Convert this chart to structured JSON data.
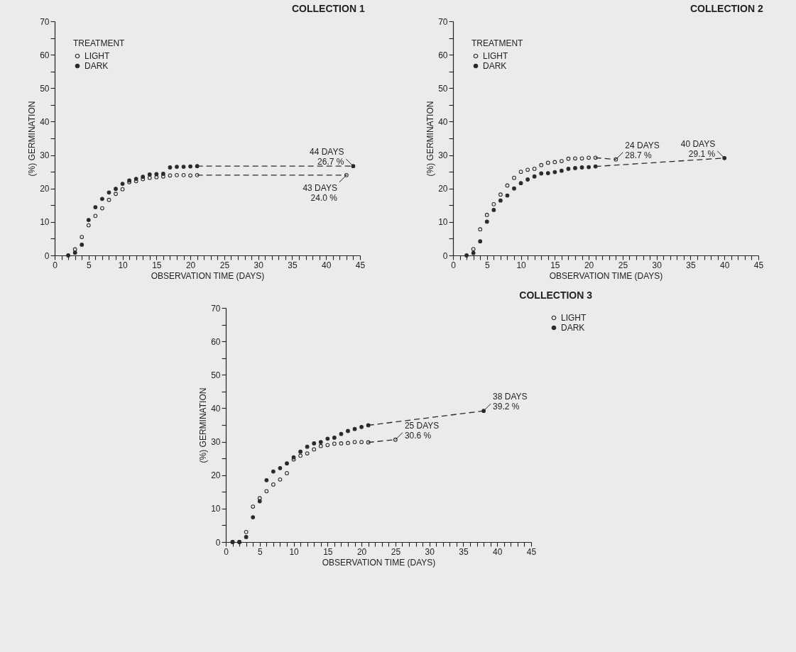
{
  "chart_data": [
    {
      "type": "scatter",
      "title": "COLLECTION   1",
      "xlabel": "OBSERVATION TIME (DAYS)",
      "ylabel": "(%) GERMINATION",
      "legend_title": "TREATMENT",
      "legend": "top left",
      "marker": "circle",
      "xlim": [
        0,
        45
      ],
      "ylim": [
        0,
        70
      ],
      "xticks": [
        0,
        {
          "value": 1,
          "label": null
        },
        {
          "value": 2,
          "label": null
        },
        {
          "value": 3,
          "label": null
        },
        {
          "value": 4,
          "label": null
        },
        5,
        {
          "value": 6,
          "label": null
        },
        {
          "value": 7,
          "label": null
        },
        {
          "value": 8,
          "label": null
        },
        {
          "value": 9,
          "label": null
        },
        10,
        {
          "value": 11,
          "label": null
        },
        {
          "value": 12,
          "label": null
        },
        {
          "value": 13,
          "label": null
        },
        {
          "value": 14,
          "label": null
        },
        15,
        {
          "value": 16,
          "label": null
        },
        {
          "value": 17,
          "label": null
        },
        {
          "value": 18,
          "label": null
        },
        {
          "value": 19,
          "label": null
        },
        20,
        {
          "value": 21,
          "label": null
        },
        {
          "value": 22,
          "label": null
        },
        {
          "value": 23,
          "label": null
        },
        {
          "value": 24,
          "label": null
        },
        25,
        {
          "value": 26,
          "label": null
        },
        {
          "value": 27,
          "label": null
        },
        {
          "value": 28,
          "label": null
        },
        {
          "value": 29,
          "label": null
        },
        30,
        {
          "value": 31,
          "label": null
        },
        {
          "value": 32,
          "label": null
        },
        {
          "value": 33,
          "label": null
        },
        {
          "value": 34,
          "label": null
        },
        35,
        {
          "value": 36,
          "label": null
        },
        {
          "value": 37,
          "label": null
        },
        {
          "value": 38,
          "label": null
        },
        {
          "value": 39,
          "label": null
        },
        40,
        {
          "value": 41,
          "label": null
        },
        {
          "value": 42,
          "label": null
        },
        {
          "value": 43,
          "label": null
        },
        {
          "value": 44,
          "label": null
        },
        45
      ],
      "yticks": [
        0,
        {
          "value": 5,
          "label": null
        },
        10,
        {
          "value": 15,
          "label": null
        },
        20,
        {
          "value": 25,
          "label": null
        },
        30,
        {
          "value": 35,
          "label": null
        },
        40,
        {
          "value": 45,
          "label": null
        },
        50,
        {
          "value": 55,
          "label": null
        },
        60,
        {
          "value": 65,
          "label": null
        },
        70
      ],
      "series": [
        {
          "name": "LIGHT",
          "color": "#2a2a2a",
          "x": [
            3,
            4,
            5,
            6,
            7,
            8,
            9,
            10,
            11,
            12,
            13,
            14,
            15,
            16,
            17,
            18,
            19,
            20,
            21,
            43
          ],
          "values": [
            1.8,
            5.5,
            9.0,
            11.8,
            14.1,
            16.6,
            18.4,
            19.8,
            21.9,
            22.2,
            22.8,
            23.2,
            23.4,
            23.6,
            23.9,
            24.0,
            24.0,
            23.9,
            24.0,
            24.0
          ]
        },
        {
          "name": "DARK",
          "color": "#2a2a2a",
          "marker": "circle",
          "x": [
            2,
            3,
            4,
            5,
            6,
            7,
            8,
            9,
            10,
            11,
            12,
            13,
            14,
            15,
            16,
            17,
            18,
            19,
            20,
            21,
            44
          ],
          "values": [
            0,
            0.8,
            3.2,
            10.6,
            14.4,
            16.9,
            18.8,
            19.9,
            21.4,
            22.4,
            22.9,
            23.5,
            24.2,
            24.3,
            24.4,
            26.3,
            26.5,
            26.5,
            26.6,
            26.7,
            26.7
          ]
        },
        {
          "type": "line",
          "color": "#2a2a2a",
          "line_style": "dashed",
          "marker": "none",
          "x": [
            21,
            43
          ],
          "values": [
            24.0,
            24.0
          ]
        },
        {
          "type": "line",
          "color": "#2a2a2a",
          "line_style": "dashed",
          "marker": "none",
          "x": [
            21,
            44
          ],
          "values": [
            26.7,
            26.7
          ]
        }
      ],
      "annotations": [
        {
          "text": "44 DAYS\n26.7 %",
          "x": 44,
          "y": 26.7
        },
        {
          "text": "43 DAYS\n24.0 %",
          "x": 43,
          "y": 24.0
        }
      ]
    },
    {
      "type": "scatter",
      "title": "COLLECTION   2",
      "xlabel": "OBSERVATION TIME (DAYS)",
      "ylabel": "(%) GERMINATION",
      "legend_title": "TREATMENT",
      "legend": "top left",
      "marker": "circle",
      "xlim": [
        0,
        45
      ],
      "ylim": [
        0,
        70
      ],
      "xticks": [
        0,
        {
          "value": 1,
          "label": null
        },
        {
          "value": 2,
          "label": null
        },
        {
          "value": 3,
          "label": null
        },
        {
          "value": 4,
          "label": null
        },
        5,
        {
          "value": 6,
          "label": null
        },
        {
          "value": 7,
          "label": null
        },
        {
          "value": 8,
          "label": null
        },
        {
          "value": 9,
          "label": null
        },
        10,
        {
          "value": 11,
          "label": null
        },
        {
          "value": 12,
          "label": null
        },
        {
          "value": 13,
          "label": null
        },
        {
          "value": 14,
          "label": null
        },
        15,
        {
          "value": 16,
          "label": null
        },
        {
          "value": 17,
          "label": null
        },
        {
          "value": 18,
          "label": null
        },
        {
          "value": 19,
          "label": null
        },
        20,
        {
          "value": 21,
          "label": null
        },
        {
          "value": 22,
          "label": null
        },
        {
          "value": 23,
          "label": null
        },
        {
          "value": 24,
          "label": null
        },
        25,
        {
          "value": 26,
          "label": null
        },
        {
          "value": 27,
          "label": null
        },
        {
          "value": 28,
          "label": null
        },
        {
          "value": 29,
          "label": null
        },
        30,
        {
          "value": 31,
          "label": null
        },
        {
          "value": 32,
          "label": null
        },
        {
          "value": 33,
          "label": null
        },
        {
          "value": 34,
          "label": null
        },
        35,
        {
          "value": 36,
          "label": null
        },
        {
          "value": 37,
          "label": null
        },
        {
          "value": 38,
          "label": null
        },
        {
          "value": 39,
          "label": null
        },
        40,
        {
          "value": 41,
          "label": null
        },
        {
          "value": 42,
          "label": null
        },
        {
          "value": 43,
          "label": null
        },
        {
          "value": 44,
          "label": null
        },
        45
      ],
      "yticks": [
        0,
        {
          "value": 5,
          "label": null
        },
        10,
        {
          "value": 15,
          "label": null
        },
        20,
        {
          "value": 25,
          "label": null
        },
        30,
        {
          "value": 35,
          "label": null
        },
        40,
        {
          "value": 45,
          "label": null
        },
        50,
        {
          "value": 55,
          "label": null
        },
        60,
        {
          "value": 65,
          "label": null
        },
        70
      ],
      "series": [
        {
          "name": "LIGHT",
          "color": "#2a2a2a",
          "x": [
            3,
            4,
            5,
            6,
            7,
            8,
            9,
            10,
            11,
            12,
            13,
            14,
            15,
            16,
            17,
            18,
            19,
            20,
            21,
            24
          ],
          "values": [
            1.9,
            7.8,
            12.1,
            15.3,
            18.2,
            20.9,
            23.2,
            25.0,
            25.6,
            25.9,
            27.0,
            27.7,
            27.9,
            28.2,
            28.9,
            29.0,
            29.0,
            29.2,
            29.2,
            28.7
          ]
        },
        {
          "name": "DARK",
          "color": "#2a2a2a",
          "marker": "circle",
          "x": [
            2,
            3,
            4,
            5,
            6,
            7,
            8,
            9,
            10,
            11,
            12,
            13,
            14,
            15,
            16,
            17,
            18,
            19,
            20,
            21,
            40
          ],
          "values": [
            0,
            0.7,
            4.2,
            10.1,
            13.6,
            16.4,
            17.9,
            20.0,
            21.6,
            22.7,
            23.6,
            24.5,
            24.6,
            24.9,
            25.3,
            25.9,
            26.1,
            26.3,
            26.4,
            26.6,
            29.1
          ]
        },
        {
          "type": "line",
          "color": "#2a2a2a",
          "line_style": "dashed",
          "marker": "none",
          "x": [
            21,
            24
          ],
          "values": [
            29.2,
            28.7
          ]
        },
        {
          "type": "line",
          "color": "#2a2a2a",
          "line_style": "dashed",
          "marker": "none",
          "x": [
            21,
            40
          ],
          "values": [
            26.6,
            29.1
          ]
        }
      ],
      "annotations": [
        {
          "text": "24 DAYS\n28.7 %",
          "x": 24,
          "y": 28.7
        },
        {
          "text": "40 DAYS\n29.1 %",
          "x": 40,
          "y": 29.1
        }
      ]
    },
    {
      "type": "scatter",
      "title": "COLLECTION   3",
      "xlabel": "OBSERVATION TIME (DAYS)",
      "ylabel": "(%) GERMINATION",
      "legend": "right",
      "marker": "circle",
      "xlim": [
        0,
        45
      ],
      "ylim": [
        0,
        70
      ],
      "xticks": [
        0,
        {
          "value": 1,
          "label": null
        },
        {
          "value": 2,
          "label": null
        },
        {
          "value": 3,
          "label": null
        },
        {
          "value": 4,
          "label": null
        },
        5,
        {
          "value": 6,
          "label": null
        },
        {
          "value": 7,
          "label": null
        },
        {
          "value": 8,
          "label": null
        },
        {
          "value": 9,
          "label": null
        },
        10,
        {
          "value": 11,
          "label": null
        },
        {
          "value": 12,
          "label": null
        },
        {
          "value": 13,
          "label": null
        },
        {
          "value": 14,
          "label": null
        },
        15,
        {
          "value": 16,
          "label": null
        },
        {
          "value": 17,
          "label": null
        },
        {
          "value": 18,
          "label": null
        },
        {
          "value": 19,
          "label": null
        },
        20,
        {
          "value": 21,
          "label": null
        },
        {
          "value": 22,
          "label": null
        },
        {
          "value": 23,
          "label": null
        },
        {
          "value": 24,
          "label": null
        },
        25,
        {
          "value": 26,
          "label": null
        },
        {
          "value": 27,
          "label": null
        },
        {
          "value": 28,
          "label": null
        },
        {
          "value": 29,
          "label": null
        },
        30,
        {
          "value": 31,
          "label": null
        },
        {
          "value": 32,
          "label": null
        },
        {
          "value": 33,
          "label": null
        },
        {
          "value": 34,
          "label": null
        },
        35,
        {
          "value": 36,
          "label": null
        },
        {
          "value": 37,
          "label": null
        },
        {
          "value": 38,
          "label": null
        },
        {
          "value": 39,
          "label": null
        },
        40,
        {
          "value": 41,
          "label": null
        },
        {
          "value": 42,
          "label": null
        },
        {
          "value": 43,
          "label": null
        },
        {
          "value": 44,
          "label": null
        },
        45
      ],
      "yticks": [
        0,
        {
          "value": 5,
          "label": null
        },
        10,
        {
          "value": 15,
          "label": null
        },
        20,
        {
          "value": 25,
          "label": null
        },
        30,
        {
          "value": 35,
          "label": null
        },
        40,
        {
          "value": 45,
          "label": null
        },
        50,
        {
          "value": 55,
          "label": null
        },
        60,
        {
          "value": 65,
          "label": null
        },
        70
      ],
      "series": [
        {
          "name": "LIGHT",
          "color": "#2a2a2a",
          "x": [
            1,
            2,
            3,
            4,
            5,
            6,
            7,
            8,
            9,
            10,
            11,
            12,
            13,
            14,
            15,
            16,
            17,
            18,
            19,
            20,
            21,
            25
          ],
          "values": [
            0,
            0,
            3.0,
            10.6,
            13.1,
            15.2,
            17.2,
            18.7,
            20.6,
            24.7,
            25.8,
            26.5,
            27.7,
            28.7,
            29.0,
            29.4,
            29.5,
            29.6,
            29.9,
            29.9,
            29.8,
            30.6
          ]
        },
        {
          "name": "DARK",
          "color": "#2a2a2a",
          "marker": "circle",
          "x": [
            1,
            2,
            3,
            4,
            5,
            6,
            7,
            8,
            9,
            10,
            11,
            12,
            13,
            14,
            15,
            16,
            17,
            18,
            19,
            20,
            21,
            38
          ],
          "values": [
            0,
            0,
            1.5,
            7.4,
            12.2,
            18.5,
            21.1,
            22.1,
            23.5,
            25.3,
            27.0,
            28.5,
            29.5,
            29.9,
            30.9,
            31.2,
            32.3,
            33.2,
            33.8,
            34.4,
            34.9,
            39.2
          ]
        },
        {
          "type": "line",
          "color": "#2a2a2a",
          "line_style": "dashed",
          "marker": "none",
          "x": [
            21,
            25
          ],
          "values": [
            29.8,
            30.6
          ]
        },
        {
          "type": "line",
          "color": "#2a2a2a",
          "line_style": "dashed",
          "marker": "none",
          "x": [
            21,
            38
          ],
          "values": [
            34.9,
            39.2
          ]
        }
      ],
      "annotations": [
        {
          "text": "25 DAYS\n30.6 %",
          "x": 25,
          "y": 30.6
        },
        {
          "text": "38 DAYS\n39.2 %",
          "x": 38,
          "y": 39.2
        }
      ]
    }
  ]
}
